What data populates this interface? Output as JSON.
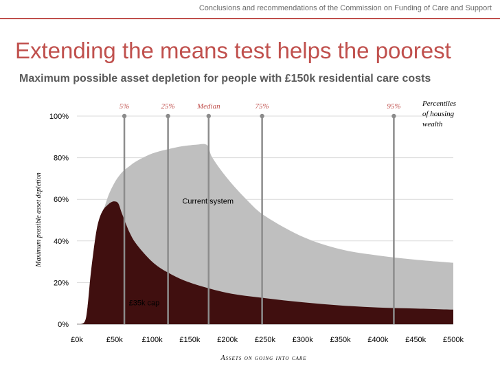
{
  "header": {
    "note": "Conclusions and recommendations of the Commission on Funding of Care and Support",
    "accent_color": "#c0504d"
  },
  "slide": {
    "title": "Extending the means test helps the poorest",
    "subtitle": "Maximum possible asset depletion for people with £150k residential care costs"
  },
  "chart_data": {
    "type": "area",
    "xlabel": "Assets on going into care",
    "ylabel": "Maximum possible asset depletion",
    "xlim": [
      0,
      500
    ],
    "ylim": [
      0,
      100
    ],
    "x_ticks": [
      "£0k",
      "£50k",
      "£100k",
      "£150k",
      "£200k",
      "£250k",
      "£300k",
      "£350k",
      "£400k",
      "£450k",
      "£500k"
    ],
    "y_ticks": [
      "0%",
      "20%",
      "40%",
      "60%",
      "80%",
      "100%"
    ],
    "grid": true,
    "series": [
      {
        "name": "Current system",
        "color": "#bfbfbf",
        "x": [
          0,
          10,
          14,
          20,
          25,
          30,
          40,
          50,
          60,
          70,
          80,
          100,
          120,
          140,
          160,
          170,
          175,
          180,
          200,
          225,
          250,
          300,
          350,
          400,
          450,
          500
        ],
        "y": [
          0,
          1,
          6,
          22,
          36,
          47,
          60,
          68,
          73,
          76,
          78.5,
          82,
          84,
          85.5,
          86.3,
          86.5,
          85,
          80,
          70,
          60,
          52,
          42,
          36,
          33,
          31,
          29.5
        ]
      },
      {
        "name": "£35k cap",
        "color": "#400f0f",
        "x": [
          0,
          10,
          14,
          18,
          22,
          26,
          30,
          35,
          40,
          45,
          50,
          55,
          60,
          70,
          80,
          100,
          120,
          150,
          200,
          250,
          300,
          350,
          400,
          450,
          500
        ],
        "y": [
          0,
          1,
          8,
          23,
          35,
          45,
          51,
          55,
          57,
          58.5,
          59,
          58,
          53,
          44,
          38,
          30,
          25,
          20,
          15,
          12.5,
          10.5,
          9,
          8,
          7.5,
          7
        ]
      }
    ],
    "percentiles": {
      "title": "Percentiles of housing wealth",
      "markers": [
        {
          "label": "5%",
          "x": 63
        },
        {
          "label": "25%",
          "x": 121
        },
        {
          "label": "Median",
          "x": 175
        },
        {
          "label": "75%",
          "x": 246
        },
        {
          "label": "95%",
          "x": 421
        }
      ]
    },
    "annotations": [
      {
        "text": "Current system",
        "x": 140,
        "y": 58
      },
      {
        "text": "£35k cap",
        "x": 69,
        "y": 9
      }
    ]
  }
}
